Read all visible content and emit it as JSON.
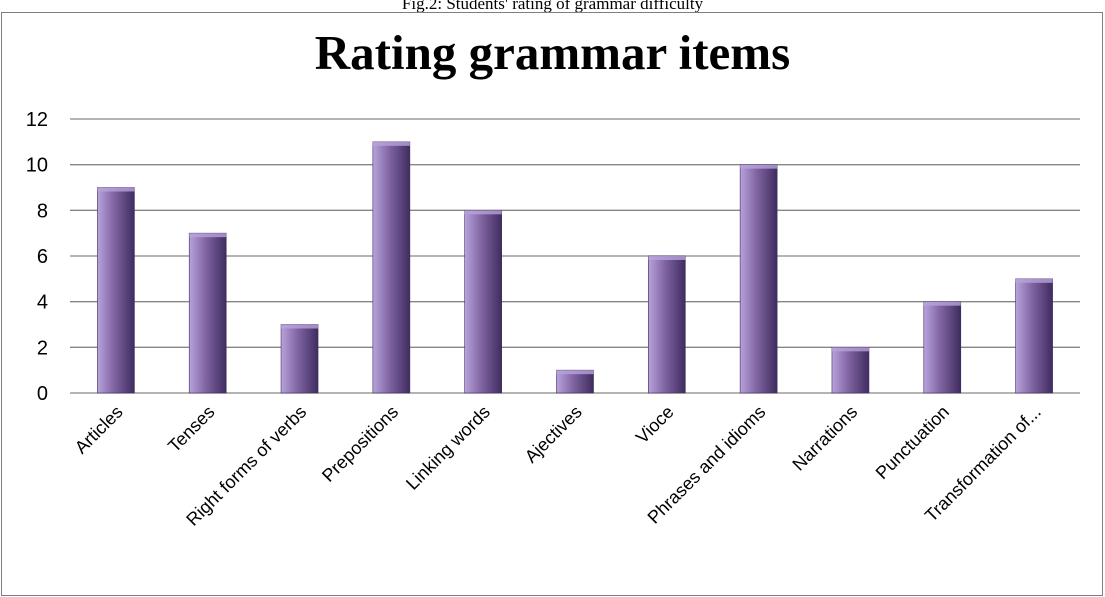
{
  "caption": "Fig.2: Students' rating of grammar difficulty",
  "colors": {
    "bar_light": "#b8a3dc",
    "bar_mid": "#8064a2",
    "bar_dark": "#3f2c5f",
    "gridline": "#868686"
  },
  "chart_data": {
    "type": "bar",
    "title": "Rating grammar items",
    "categories": [
      "Articles",
      "Tenses",
      "Right forms of verbs",
      "Prepositions",
      "Linking words",
      "Ajectives",
      "Vioce",
      "Phrases and idioms",
      "Narrations",
      "Punctuation",
      "Transformation of..."
    ],
    "values": [
      9,
      7,
      3,
      11,
      8,
      1,
      6,
      10,
      2,
      4,
      5
    ],
    "ylim": [
      0,
      12
    ],
    "yticks": [
      "0",
      "2",
      "4",
      "6",
      "8",
      "10",
      "12"
    ],
    "grid": true,
    "legend": "none"
  }
}
